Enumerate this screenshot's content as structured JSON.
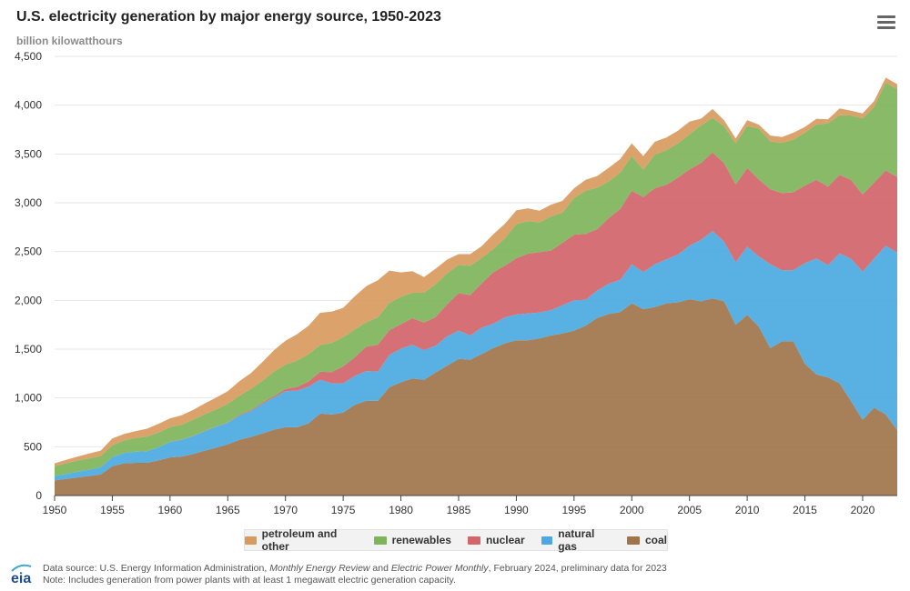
{
  "chart_data": {
    "type": "area",
    "stacked": true,
    "title": "U.S. electricity generation by major energy source, 1950-2023",
    "ylabel": "billion kilowatthours",
    "xlim": [
      1950,
      2023
    ],
    "ylim": [
      0,
      4500
    ],
    "x_ticks": [
      "1950",
      "1955",
      "1960",
      "1965",
      "1970",
      "1975",
      "1980",
      "1985",
      "1990",
      "1995",
      "2000",
      "2005",
      "2010",
      "2015",
      "2020"
    ],
    "y_ticks": [
      "0",
      "500",
      "1,000",
      "1,500",
      "2,000",
      "2,500",
      "3,000",
      "3,500",
      "4,000",
      "4,500"
    ],
    "grid": true,
    "legend_position": "bottom",
    "x": [
      1950,
      1951,
      1952,
      1953,
      1954,
      1955,
      1956,
      1957,
      1958,
      1959,
      1960,
      1961,
      1962,
      1963,
      1964,
      1965,
      1966,
      1967,
      1968,
      1969,
      1970,
      1971,
      1972,
      1973,
      1974,
      1975,
      1976,
      1977,
      1978,
      1979,
      1980,
      1981,
      1982,
      1983,
      1984,
      1985,
      1986,
      1987,
      1988,
      1989,
      1990,
      1991,
      1992,
      1993,
      1994,
      1995,
      1996,
      1997,
      1998,
      1999,
      2000,
      2001,
      2002,
      2003,
      2004,
      2005,
      2006,
      2007,
      2008,
      2009,
      2010,
      2011,
      2012,
      2013,
      2014,
      2015,
      2016,
      2017,
      2018,
      2019,
      2020,
      2021,
      2022,
      2023
    ],
    "series": [
      {
        "name": "coal",
        "color": "#a0744a",
        "values": [
          155,
          170,
          185,
          200,
          215,
          300,
          330,
          335,
          335,
          360,
          390,
          400,
          425,
          460,
          490,
          525,
          570,
          600,
          635,
          675,
          700,
          700,
          740,
          840,
          830,
          850,
          930,
          970,
          970,
          1110,
          1160,
          1200,
          1185,
          1260,
          1330,
          1400,
          1390,
          1450,
          1510,
          1560,
          1590,
          1590,
          1610,
          1640,
          1660,
          1690,
          1740,
          1820,
          1860,
          1880,
          1970,
          1910,
          1930,
          1970,
          1980,
          2010,
          1990,
          2020,
          1990,
          1750,
          1850,
          1730,
          1510,
          1580,
          1580,
          1350,
          1240,
          1210,
          1150,
          965,
          775,
          900,
          830,
          670
        ]
      },
      {
        "name": "natural gas",
        "color": "#4ba9e0",
        "values": [
          45,
          50,
          60,
          65,
          75,
          95,
          105,
          115,
          120,
          135,
          160,
          170,
          185,
          200,
          215,
          220,
          250,
          265,
          305,
          330,
          370,
          375,
          375,
          345,
          320,
          300,
          295,
          305,
          300,
          330,
          345,
          345,
          305,
          275,
          300,
          290,
          250,
          270,
          250,
          265,
          265,
          275,
          265,
          260,
          290,
          310,
          265,
          280,
          310,
          330,
          400,
          380,
          440,
          450,
          490,
          550,
          630,
          690,
          610,
          640,
          700,
          720,
          860,
          730,
          730,
          1030,
          1190,
          1150,
          1330,
          1460,
          1520,
          1530,
          1730,
          1820
        ]
      },
      {
        "name": "nuclear",
        "color": "#d1656a",
        "values": [
          0,
          0,
          0,
          0,
          0,
          0,
          0,
          0,
          0,
          0,
          1,
          2,
          2,
          3,
          3,
          4,
          6,
          8,
          12,
          14,
          22,
          38,
          54,
          83,
          114,
          173,
          191,
          251,
          276,
          255,
          251,
          273,
          283,
          294,
          328,
          384,
          414,
          455,
          527,
          529,
          577,
          613,
          619,
          610,
          640,
          673,
          675,
          629,
          673,
          728,
          754,
          769,
          780,
          764,
          789,
          782,
          787,
          806,
          806,
          799,
          807,
          790,
          769,
          789,
          797,
          797,
          806,
          805,
          807,
          809,
          790,
          778,
          772,
          775
        ]
      },
      {
        "name": "renewables",
        "color": "#7fb45b",
        "values": [
          100,
          110,
          115,
          115,
          115,
          120,
          130,
          140,
          150,
          150,
          150,
          155,
          165,
          170,
          175,
          190,
          195,
          220,
          225,
          250,
          250,
          270,
          280,
          275,
          300,
          300,
          285,
          250,
          280,
          280,
          280,
          260,
          305,
          335,
          320,
          290,
          300,
          260,
          240,
          280,
          350,
          335,
          305,
          350,
          310,
          375,
          445,
          425,
          375,
          370,
          355,
          280,
          345,
          355,
          350,
          360,
          385,
          355,
          380,
          420,
          430,
          520,
          490,
          515,
          540,
          540,
          565,
          650,
          610,
          660,
          780,
          775,
          900,
          900
        ]
      },
      {
        "name": "petroleum and other",
        "color": "#d99a5e",
        "values": [
          30,
          35,
          40,
          50,
          55,
          70,
          65,
          70,
          80,
          90,
          90,
          95,
          100,
          110,
          120,
          130,
          150,
          160,
          190,
          220,
          245,
          270,
          290,
          330,
          320,
          300,
          340,
          370,
          380,
          330,
          250,
          220,
          160,
          160,
          140,
          110,
          120,
          120,
          150,
          150,
          140,
          130,
          120,
          120,
          120,
          100,
          110,
          120,
          140,
          140,
          130,
          140,
          130,
          130,
          130,
          130,
          70,
          90,
          60,
          50,
          60,
          40,
          60,
          60,
          70,
          60,
          60,
          40,
          70,
          50,
          50,
          60,
          50,
          50
        ]
      }
    ]
  },
  "header": {
    "title": "U.S. electricity generation by major energy source, 1950-2023",
    "subtitle": "billion kilowatthours",
    "menu_icon": "hamburger-menu-icon"
  },
  "legend": {
    "items": [
      {
        "label": "petroleum and other",
        "color": "#d99a5e"
      },
      {
        "label": "renewables",
        "color": "#7fb45b"
      },
      {
        "label": "nuclear",
        "color": "#d1656a"
      },
      {
        "label": "natural gas",
        "color": "#4ba9e0"
      },
      {
        "label": "coal",
        "color": "#a0744a"
      }
    ]
  },
  "footer": {
    "line1_prefix": "Data source: U.S. Energy Information Administration, ",
    "line1_pub1": "Monthly Energy Review",
    "line1_and": " and ",
    "line1_pub2": "Electric Power Monthly",
    "line1_suffix": ", February 2024, preliminary data for 2023",
    "line2": "Note: Includes generation from power plants with at least 1 megawatt electric generation capacity.",
    "logo_text": "eia"
  }
}
